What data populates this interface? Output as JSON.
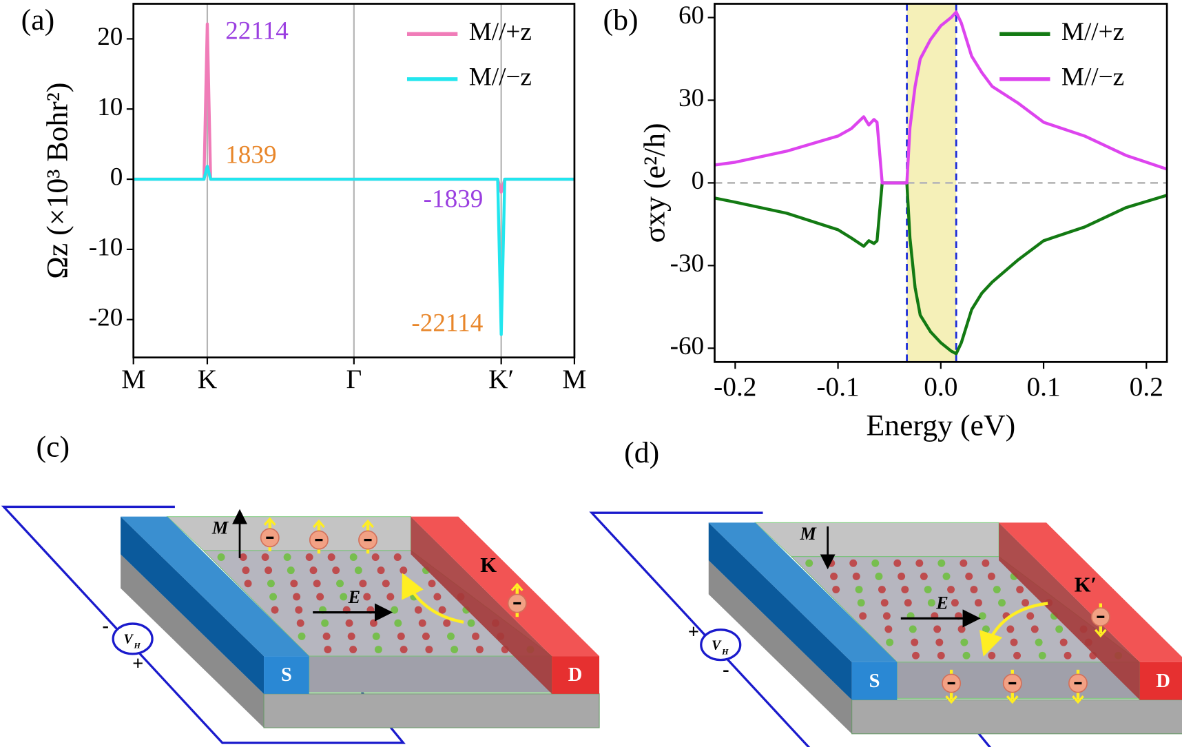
{
  "chart_data": [
    {
      "type": "line",
      "panel": "(a)",
      "ylabel": "Ωz (×10³ Bohr²)",
      "x": [
        0,
        0.16,
        0.1675,
        0.175,
        0.5,
        0.826,
        0.834,
        0.842,
        1
      ],
      "xlim": [
        0,
        1
      ],
      "xticks": [
        {
          "value": 0,
          "label": "M"
        },
        {
          "value": 0.1675,
          "label": "K"
        },
        {
          "value": 0.5,
          "label": "Γ"
        },
        {
          "value": 0.834,
          "label": "K′"
        },
        {
          "value": 1,
          "label": "M"
        }
      ],
      "xgrid": true,
      "ylim": [
        -25.4,
        25
      ],
      "yticks": [
        -20,
        -10,
        0,
        10,
        20
      ],
      "legend": "upper right",
      "series": [
        {
          "name": "M//+z",
          "color": "#f07cb8",
          "label_color": "#9a3ee0",
          "values": [
            0,
            0,
            22.114,
            0,
            0,
            0,
            -1.839,
            0,
            0
          ],
          "value_labels": [
            null,
            null,
            "22114",
            null,
            null,
            null,
            "-1839",
            null,
            null
          ]
        },
        {
          "name": "M//−z",
          "color": "#22e6ee",
          "label_color": "#e8862a",
          "values": [
            0,
            0,
            1.839,
            0,
            0,
            0,
            -22.114,
            0,
            0
          ],
          "value_labels": [
            null,
            null,
            "1839",
            null,
            null,
            null,
            "-22114",
            null,
            null
          ]
        }
      ]
    },
    {
      "type": "line",
      "panel": "(b)",
      "xlabel": "Energy (eV)",
      "ylabel": "σxy  (e²/h)",
      "x": [
        -0.22,
        -0.2,
        -0.15,
        -0.1,
        -0.087,
        -0.075,
        -0.07,
        -0.065,
        -0.062,
        -0.057,
        -0.045,
        -0.033,
        -0.03,
        -0.025,
        -0.02,
        -0.01,
        0,
        0.01,
        0.015,
        0.02,
        0.03,
        0.04,
        0.05,
        0.075,
        0.1,
        0.14,
        0.18,
        0.22
      ],
      "xlim": [
        -0.22,
        0.22
      ],
      "xticks": [
        -0.2,
        -0.1,
        {
          "value": 0,
          "label": "0.0"
        },
        0.1,
        0.2
      ],
      "ylim": [
        -65,
        65
      ],
      "yticks": [
        -60,
        -30,
        0,
        30,
        60
      ],
      "zero_line": true,
      "highlight": [
        -0.033,
        0.015
      ],
      "highlight_color": "#f5f0b8",
      "highlight_edge_color": "#1a2ad8",
      "legend": "upper right",
      "series": [
        {
          "name": "M//+z",
          "color": "#137a13",
          "values": [
            -5.5,
            -7,
            -11,
            -17,
            -20,
            -23,
            -21,
            -22,
            -21,
            0,
            0,
            0,
            -20,
            -38,
            -48,
            -54,
            -58,
            -61,
            -62,
            -58,
            -46,
            -40,
            -36,
            -28,
            -21,
            -16,
            -9,
            -4.5
          ]
        },
        {
          "name": "M//−z",
          "color": "#dd44ee",
          "values": [
            6.5,
            7.5,
            11.5,
            17,
            19.7,
            24,
            21,
            23,
            22,
            0,
            0,
            0,
            20,
            35,
            45,
            52,
            57,
            60,
            62,
            58,
            46,
            40,
            35,
            29,
            22,
            17,
            10,
            5
          ]
        }
      ]
    }
  ],
  "diagrams": [
    {
      "panel": "(c)",
      "magnetization": "M",
      "field": "E",
      "valley": "K",
      "source": "S",
      "drain": "D",
      "voltage": "V",
      "voltage_sub": "H",
      "top_sign": "-",
      "bottom_sign": "+"
    },
    {
      "panel": "(d)",
      "magnetization": "M",
      "field": "E",
      "valley": "K′",
      "source": "S",
      "drain": "D",
      "voltage": "V",
      "voltage_sub": "H",
      "top_sign": "+",
      "bottom_sign": "-"
    }
  ]
}
